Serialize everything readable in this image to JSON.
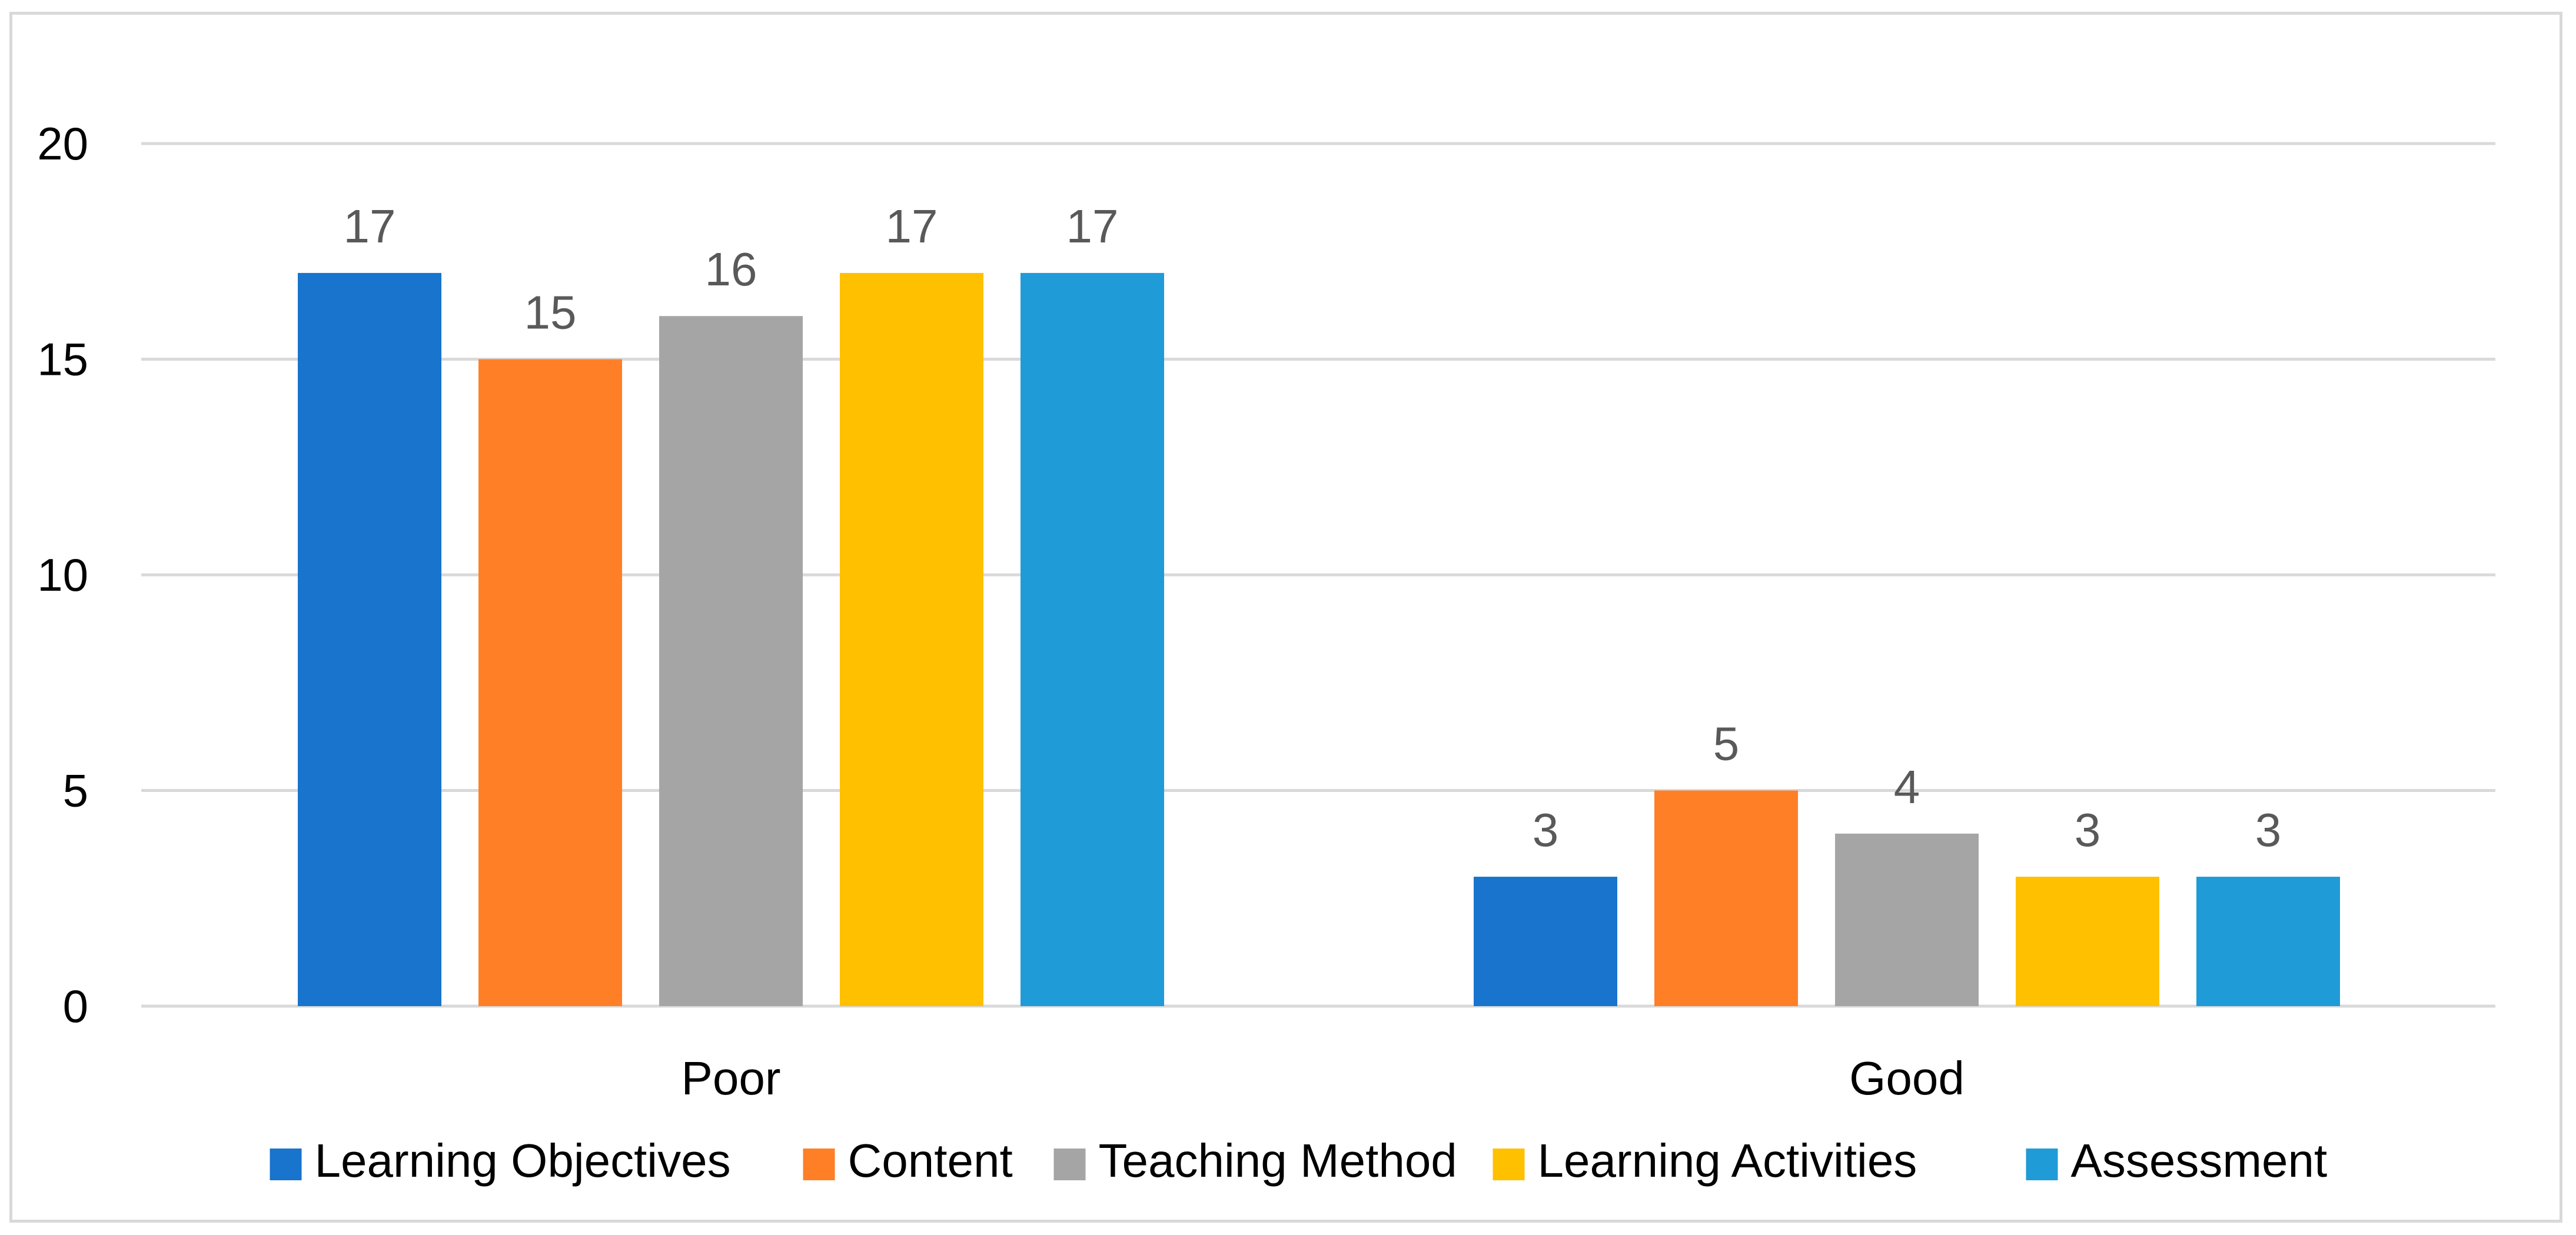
{
  "chart_data": {
    "type": "bar",
    "categories": [
      "Poor",
      "Good"
    ],
    "series": [
      {
        "name": "Learning Objectives",
        "values": [
          17,
          3
        ],
        "color": "#1874CD"
      },
      {
        "name": "Content",
        "values": [
          15,
          5
        ],
        "color": "#FF7F27"
      },
      {
        "name": "Teaching Method",
        "values": [
          16,
          4
        ],
        "color": "#A5A5A5"
      },
      {
        "name": "Learning Activities",
        "values": [
          17,
          3
        ],
        "color": "#FFC000"
      },
      {
        "name": "Assessment",
        "values": [
          17,
          3
        ],
        "color": "#1F9BD7"
      }
    ],
    "y_ticks": [
      "0",
      "5",
      "10",
      "15",
      "20"
    ],
    "ylim": [
      0,
      20
    ],
    "grid": true,
    "gridline_color": "#d9d9d9",
    "legend_position": "bottom",
    "data_labels": true
  }
}
